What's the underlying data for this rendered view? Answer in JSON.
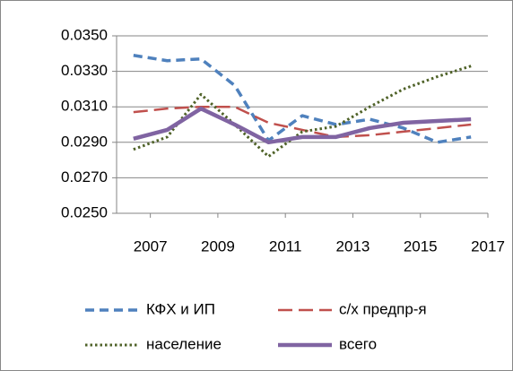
{
  "chart_data": {
    "type": "line",
    "x": [
      2006.5,
      2007.5,
      2008.5,
      2009.5,
      2010.5,
      2011.5,
      2012.5,
      2013.5,
      2014.5,
      2015.5,
      2016.5
    ],
    "series": [
      {
        "name": "КФХ и ИП",
        "color": "#4f81bd",
        "dash": "dashed",
        "values": [
          0.0339,
          0.0336,
          0.0337,
          0.0322,
          0.0291,
          0.0305,
          0.03,
          0.0303,
          0.0298,
          0.029,
          0.0293
        ]
      },
      {
        "name": "с/х предпр-я",
        "color": "#c0504d",
        "dash": "longdash",
        "values": [
          0.0307,
          0.0309,
          0.031,
          0.031,
          0.0301,
          0.0297,
          0.0293,
          0.0294,
          0.0296,
          0.0298,
          0.03
        ]
      },
      {
        "name": "население",
        "color": "#4f6228",
        "dash": "dotted",
        "values": [
          0.0286,
          0.0293,
          0.0317,
          0.03,
          0.0282,
          0.0296,
          0.0299,
          0.031,
          0.032,
          0.0327,
          0.0333
        ]
      },
      {
        "name": "всего",
        "color": "#8064a2",
        "dash": "solid",
        "values": [
          0.0292,
          0.0297,
          0.0309,
          0.03,
          0.029,
          0.0293,
          0.0293,
          0.0298,
          0.0301,
          0.0302,
          0.0303
        ]
      }
    ],
    "xlim": [
      2006,
      2017
    ],
    "xticks": [
      2007,
      2009,
      2011,
      2013,
      2015,
      2017
    ],
    "ylim": [
      0.025,
      0.035
    ],
    "yticks": [
      {
        "value": 0.025,
        "label": "0.0250"
      },
      {
        "value": 0.027,
        "label": "0.0270"
      },
      {
        "value": 0.029,
        "label": "0.0290"
      },
      {
        "value": 0.031,
        "label": "0.0310"
      },
      {
        "value": 0.033,
        "label": "0.0330"
      },
      {
        "value": 0.035,
        "label": "0.0350"
      }
    ],
    "grid": true,
    "legend": "bottom"
  }
}
